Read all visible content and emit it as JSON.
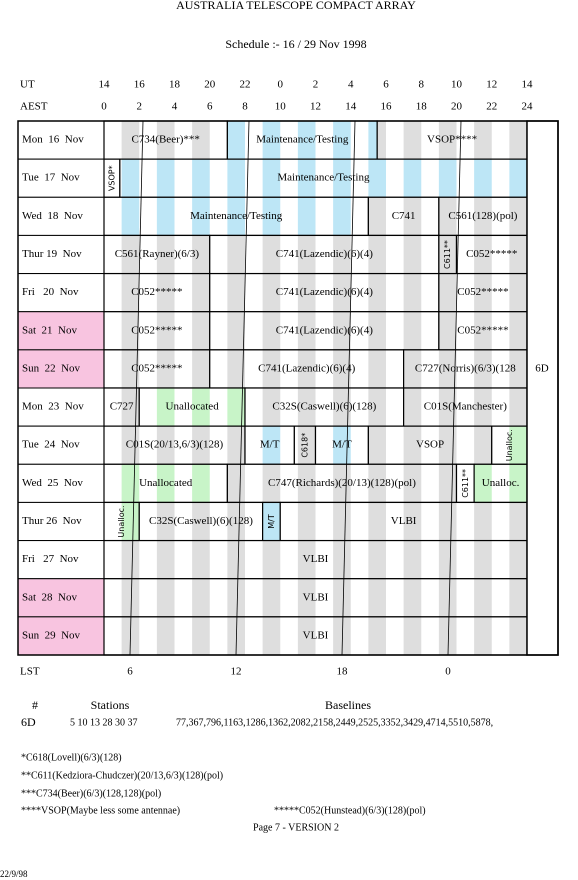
{
  "title": "AUSTRALIA TELESCOPE COMPACT ARRAY",
  "subtitle": "Schedule :- 16 / 29 Nov 1998",
  "ut_label": "UT",
  "ut_hours": [
    14,
    16,
    18,
    20,
    22,
    0,
    2,
    4,
    6,
    8,
    10,
    12,
    14
  ],
  "aest_label": "AEST",
  "aest_hours": [
    0,
    2,
    4,
    6,
    8,
    10,
    12,
    14,
    16,
    18,
    20,
    22,
    24
  ],
  "rows": [
    {
      "label": "Mon  16  Nov",
      "weekend": false,
      "blocks": [
        {
          "text": "C734(Beer)***",
          "kind": "white"
        },
        {
          "text": "Maintenance/Testing",
          "kind": "blue"
        },
        {
          "text": "VSOP****",
          "kind": "white"
        }
      ]
    },
    {
      "label": "Tue  17  Nov",
      "weekend": false,
      "blocks": [
        {
          "text": "VSOP*",
          "kind": "white"
        },
        {
          "text": "Maintenance/Testing",
          "kind": "blue"
        }
      ]
    },
    {
      "label": "Wed  18  Nov",
      "weekend": false,
      "blocks": [
        {
          "text": "Maintenance/Testing",
          "kind": "blue"
        },
        {
          "text": "C741",
          "kind": "white"
        },
        {
          "text": "C561(128)(pol)",
          "kind": "white"
        }
      ]
    },
    {
      "label": "Thur 19  Nov",
      "weekend": false,
      "blocks": [
        {
          "text": "C561(Rayner)(6/3)",
          "kind": "white"
        },
        {
          "text": "C741(Lazendic)(6)(4)",
          "kind": "white"
        },
        {
          "text": "C611**",
          "kind": "white"
        },
        {
          "text": "C052*****",
          "kind": "white"
        }
      ]
    },
    {
      "label": "Fri   20  Nov",
      "weekend": false,
      "blocks": [
        {
          "text": "C052*****",
          "kind": "white"
        },
        {
          "text": "C741(Lazendic)(6)(4)",
          "kind": "white"
        },
        {
          "text": "C052*****",
          "kind": "white"
        }
      ]
    },
    {
      "label": "Sat  21  Nov",
      "weekend": true,
      "blocks": [
        {
          "text": "C052*****",
          "kind": "white"
        },
        {
          "text": "C741(Lazendic)(6)(4)",
          "kind": "white"
        },
        {
          "text": "C052*****",
          "kind": "white"
        }
      ]
    },
    {
      "label": "Sun  22  Nov",
      "weekend": true,
      "blocks": [
        {
          "text": "C052*****",
          "kind": "white"
        },
        {
          "text": "C741(Lazendic)(6)(4)",
          "kind": "white"
        },
        {
          "text": "C727(Norris)(6/3)(128",
          "kind": "white"
        }
      ]
    },
    {
      "label": "Mon  23  Nov",
      "weekend": false,
      "blocks": [
        {
          "text": "C727",
          "kind": "white"
        },
        {
          "text": "Unallocated",
          "kind": "green"
        },
        {
          "text": "C32S(Caswell)(6)(128)",
          "kind": "white"
        },
        {
          "text": "C01S(Manchester)",
          "kind": "white"
        }
      ]
    },
    {
      "label": "Tue  24  Nov",
      "weekend": false,
      "blocks": [
        {
          "text": "C01S(20/13,6/3)(128)",
          "kind": "white"
        },
        {
          "text": "M/T",
          "kind": "blue"
        },
        {
          "text": "C618*",
          "kind": "white"
        },
        {
          "text": "M/T",
          "kind": "blue"
        },
        {
          "text": "VSOP",
          "kind": "white"
        },
        {
          "text": "Unalloc.",
          "kind": "green"
        }
      ]
    },
    {
      "label": "Wed  25  Nov",
      "weekend": false,
      "blocks": [
        {
          "text": "Unallocated",
          "kind": "green"
        },
        {
          "text": "C747(Richards)(20/13)(128)(pol)",
          "kind": "white"
        },
        {
          "text": "C611**",
          "kind": "white"
        },
        {
          "text": "Unalloc.",
          "kind": "green"
        }
      ]
    },
    {
      "label": "Thur 26  Nov",
      "weekend": false,
      "blocks": [
        {
          "text": "Unalloc.",
          "kind": "green"
        },
        {
          "text": "C32S(Caswell)(6)(128)",
          "kind": "white"
        },
        {
          "text": "M/T",
          "kind": "blue"
        },
        {
          "text": "VLBI",
          "kind": "white"
        }
      ]
    },
    {
      "label": "Fri   27  Nov",
      "weekend": false,
      "blocks": [
        {
          "text": "VLBI",
          "kind": "white"
        }
      ]
    },
    {
      "label": "Sat  28  Nov",
      "weekend": true,
      "blocks": [
        {
          "text": "VLBI",
          "kind": "white"
        }
      ]
    },
    {
      "label": "Sun  29  Nov",
      "weekend": true,
      "blocks": [
        {
          "text": "VLBI",
          "kind": "white"
        }
      ]
    }
  ],
  "config_label": "6D",
  "lst_label": "LST",
  "lst_hours": [
    6,
    12,
    18,
    0
  ],
  "stations_table": {
    "headers": [
      "#",
      "Stations",
      "Baselines"
    ],
    "rows": [
      [
        "6D",
        "5 10 13 28 30 37",
        "77,367,796,1163,1286,1362,2082,2158,2449,2525,3352,3429,4714,5510,5878,"
      ]
    ]
  },
  "notes": [
    "*C618(Lovell)(6/3)(128)",
    "**C611(Kedziora-Chudczer)(20/13,6/3)(128)(pol)",
    "***C734(Beer)(6/3)(128,128)(pol)",
    "****VSOP(Maybe less some antennae)",
    "*****C052(Hunstead)(6/3)(128)(pol)"
  ],
  "footer": "Page 7 - VERSION 2",
  "date": "22/9/98"
}
